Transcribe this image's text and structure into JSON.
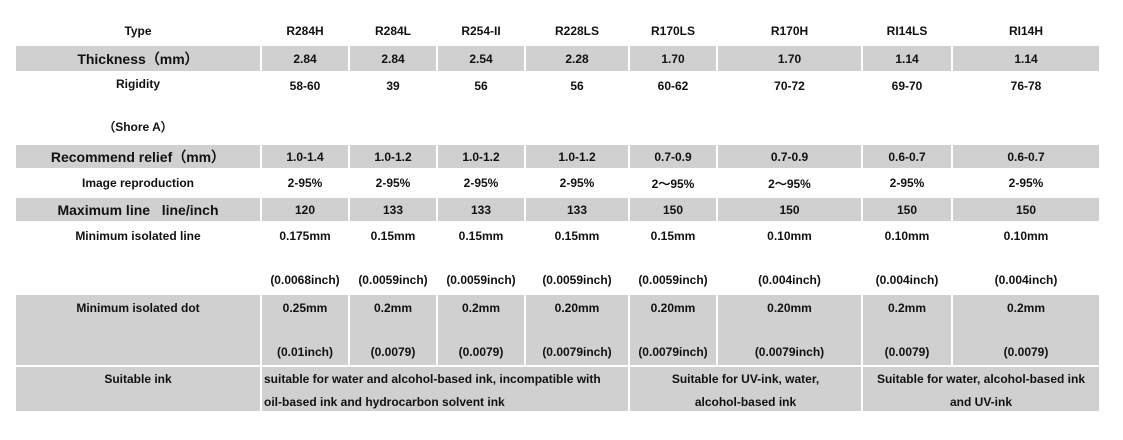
{
  "header": {
    "label": "Type",
    "types": [
      "R284H",
      "R284L",
      "R254-II",
      "R228LS",
      "R170LS",
      "R170H",
      "RI14LS",
      "RI14H"
    ]
  },
  "thickness": {
    "label": "Thickness（mm）",
    "values": [
      "2.84",
      "2.84",
      "2.54",
      "2.28",
      "1.70",
      "1.70",
      "1.14",
      "1.14"
    ]
  },
  "rigidity": {
    "label": "Rigidity",
    "label2": "（Shore A）",
    "values": [
      "58-60",
      "39",
      "56",
      "56",
      "60-62",
      "70-72",
      "69-70",
      "76-78"
    ]
  },
  "relief": {
    "label": "Recommend relief（mm）",
    "values": [
      "1.0-1.4",
      "1.0-1.2",
      "1.0-1.2",
      "1.0-1.2",
      "0.7-0.9",
      "0.7-0.9",
      "0.6-0.7",
      "0.6-0.7"
    ]
  },
  "image_repro": {
    "label": "Image reproduction",
    "values": [
      "2-95%",
      "2-95%",
      "2-95%",
      "2-95%",
      "2～95%",
      "2～95%",
      "2-95%",
      "2-95%"
    ]
  },
  "max_line": {
    "label": "Maximum line   line/inch",
    "values": [
      "120",
      "133",
      "133",
      "133",
      "150",
      "150",
      "150",
      "150"
    ]
  },
  "min_line": {
    "label": "Minimum isolated line",
    "values": [
      "0.175mm",
      "0.15mm",
      "0.15mm",
      "0.15mm",
      "0.15mm",
      "0.10mm",
      "0.10mm",
      "0.10mm"
    ],
    "values2": [
      "(0.0068inch)",
      "(0.0059inch)",
      "(0.0059inch)",
      "(0.0059inch)",
      "(0.0059inch)",
      "(0.004inch)",
      "(0.004inch)",
      "(0.004inch)"
    ]
  },
  "min_dot": {
    "label": "Minimum isolated dot",
    "values": [
      "0.25mm",
      "0.2mm",
      "0.2mm",
      "0.20mm",
      "0.20mm",
      "0.20mm",
      "0.2mm",
      "0.2mm"
    ],
    "values2": [
      "(0.01inch)",
      "(0.0079)",
      "(0.0079)",
      "(0.0079inch)",
      "(0.0079inch)",
      "(0.0079inch)",
      "(0.0079)",
      "(0.0079)"
    ]
  },
  "ink": {
    "label": "Suitable ink",
    "group1_line1": "suitable for water and alcohol-based ink, incompatible with",
    "group1_line2": "oil-based ink and hydrocarbon solvent ink",
    "group2_line1": "Suitable for UV-ink, water,",
    "group2_line2": "alcohol-based ink",
    "group3_line1": "Suitable for water, alcohol-based ink",
    "group3_line2": "and UV-ink"
  }
}
